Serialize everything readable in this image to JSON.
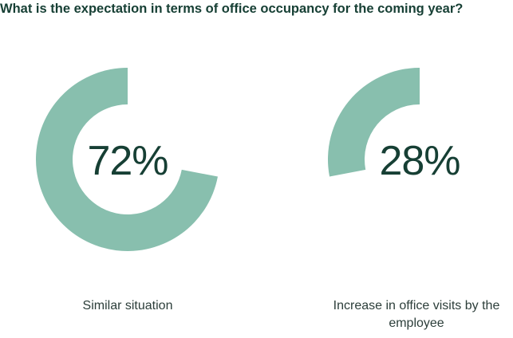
{
  "title": "What is the expectation in terms of office occupancy for the coming year?",
  "colors": {
    "accent": "#88bfae",
    "text_dark": "#163f34"
  },
  "chart_data": [
    {
      "type": "pie",
      "variant": "donut",
      "category": "Similar situation",
      "value": 72,
      "value_label": "72%",
      "direction": "counter-clockwise from top"
    },
    {
      "type": "pie",
      "variant": "donut",
      "category": "Increase in office visits by the employee",
      "value": 28,
      "value_label": "28%",
      "direction": "counter-clockwise from top"
    }
  ]
}
